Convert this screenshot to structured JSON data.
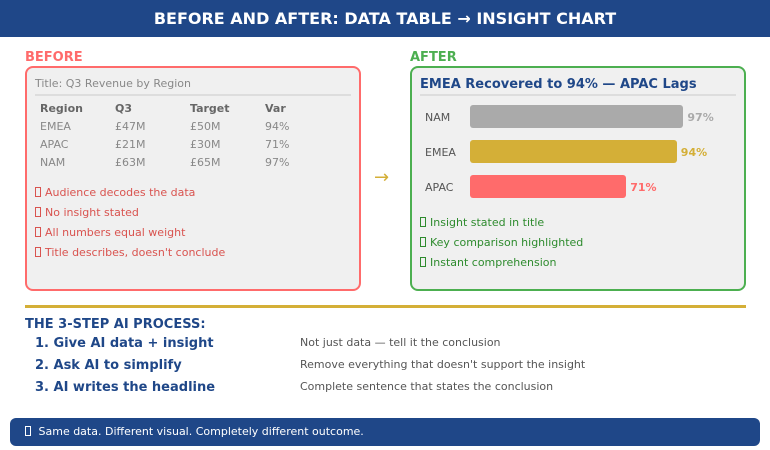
{
  "header": {
    "title": "BEFORE AND AFTER: DATA TABLE → INSIGHT CHART"
  },
  "colors": {
    "brand": "#1f4788",
    "before": "#ff6b6b",
    "after": "#4caf50",
    "gold": "#d4af37",
    "gray": "#aaaaaa"
  },
  "before": {
    "label": "BEFORE",
    "table_title": "Title: Q3 Revenue by Region",
    "columns": [
      "Region",
      "Q3",
      "Target",
      "Var"
    ],
    "rows": [
      [
        "EMEA",
        "£47M",
        "£50M",
        "94%"
      ],
      [
        "APAC",
        "£21M",
        "£30M",
        "71%"
      ],
      [
        "NAM",
        "£63M",
        "£65M",
        "97%"
      ]
    ],
    "problems_icon": "missing-glyph-icon",
    "problems": [
      "Audience decodes the data",
      "No insight stated",
      "All numbers equal weight",
      "Title describes, doesn't conclude"
    ]
  },
  "arrow": "→",
  "after": {
    "label": "AFTER",
    "chart_title": "EMEA Recovered to 94% — APAC Lags",
    "benefits_icon": "missing-glyph-icon",
    "benefits": [
      "Insight stated in title",
      "Key comparison highlighted",
      "Instant comprehension"
    ]
  },
  "chart_data": {
    "type": "bar",
    "orientation": "horizontal",
    "title": "EMEA Recovered to 94% — APAC Lags",
    "categories": [
      "NAM",
      "EMEA",
      "APAC"
    ],
    "values": [
      97,
      94,
      71
    ],
    "labels": [
      "97%",
      "94%",
      "71%"
    ],
    "colors": [
      "#aaaaaa",
      "#d4af37",
      "#ff6b6b"
    ],
    "xlim": [
      0,
      100
    ]
  },
  "process": {
    "title": "THE 3-STEP AI PROCESS:",
    "steps": [
      {
        "label": "1. Give AI data + insight",
        "desc": "Not just data — tell it the conclusion"
      },
      {
        "label": "2. Ask AI to simplify",
        "desc": "Remove everything that doesn't support the insight"
      },
      {
        "label": "3. AI writes the headline",
        "desc": "Complete sentence that states the conclusion"
      }
    ]
  },
  "footer": {
    "icon": "missing-glyph-icon",
    "text": "Same data. Different visual. Completely different outcome."
  }
}
